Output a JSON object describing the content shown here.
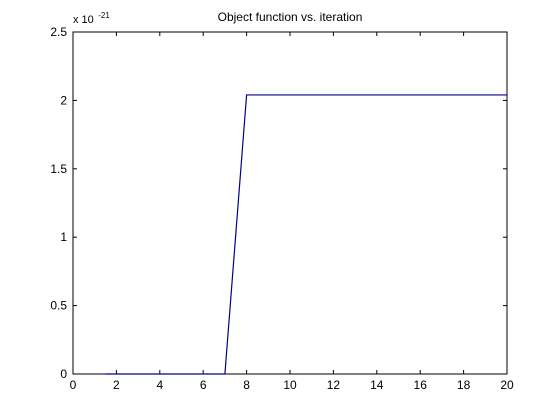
{
  "chart_data": {
    "type": "line",
    "title": "Object function vs. iteration",
    "xlabel": "",
    "ylabel": "",
    "xlim": [
      0,
      20
    ],
    "ylim": [
      0,
      2.5
    ],
    "x_ticks": [
      "0",
      "2",
      "4",
      "6",
      "8",
      "10",
      "12",
      "14",
      "16",
      "18",
      "20"
    ],
    "x_tick_values": [
      0,
      2,
      4,
      6,
      8,
      10,
      12,
      14,
      16,
      18,
      20
    ],
    "y_ticks": [
      "0",
      "0.5",
      "1",
      "1.5",
      "2",
      "2.5"
    ],
    "y_tick_values": [
      0,
      0.5,
      1,
      1.5,
      2,
      2.5
    ],
    "y_exponent_base": "x 10",
    "y_exponent_power": "-21",
    "grid": false,
    "legend": "none",
    "line_color": "#00008b",
    "series": [
      {
        "x": [
          1.5,
          7,
          8,
          20
        ],
        "y": [
          0,
          0,
          2.04,
          2.04
        ]
      }
    ]
  }
}
